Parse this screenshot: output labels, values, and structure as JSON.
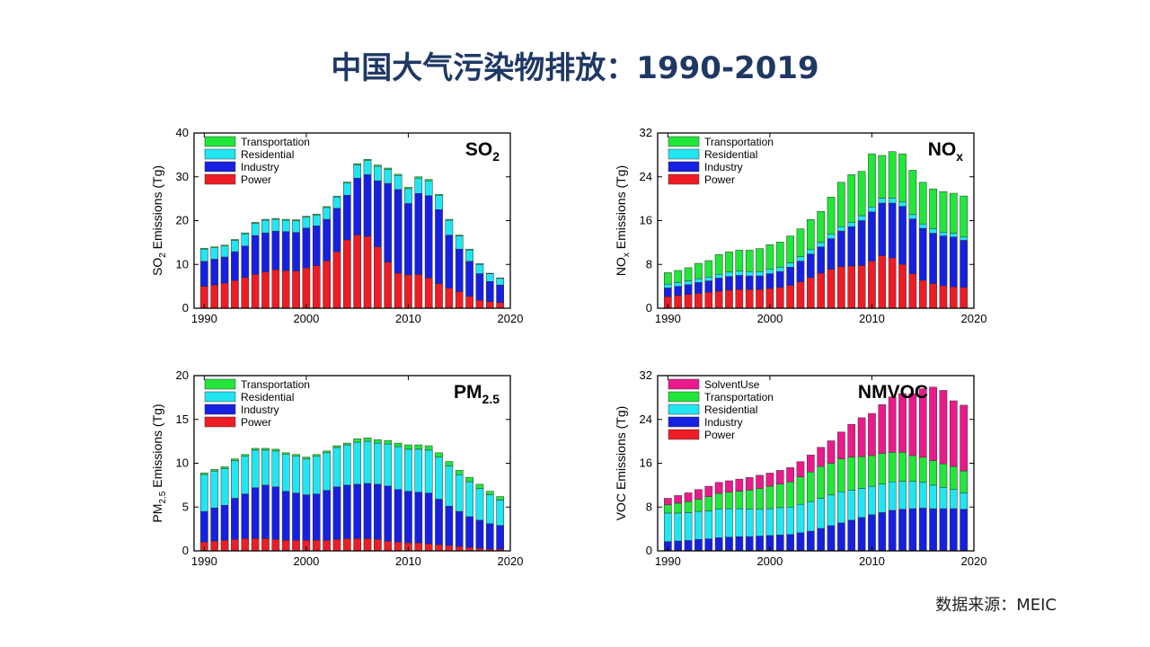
{
  "page": {
    "title": "中国大气污染物排放：1990-2019",
    "source": "数据来源：MEIC"
  },
  "chart_data": [
    {
      "type": "bar",
      "stacked": true,
      "title": "SO",
      "title_sub": "2",
      "ylabel": "SO",
      "ylabel_sub": "2",
      "ylabel_suffix": " Emissions (Tg)",
      "xlim": [
        1989,
        2020
      ],
      "ylim": [
        0,
        40
      ],
      "x_ticks": [
        1990,
        2000,
        2010,
        2020
      ],
      "y_ticks": [
        0,
        10,
        20,
        30,
        40
      ],
      "legend_position": "top-left",
      "x": [
        1990,
        1991,
        1992,
        1993,
        1994,
        1995,
        1996,
        1997,
        1998,
        1999,
        2000,
        2001,
        2002,
        2003,
        2004,
        2005,
        2006,
        2007,
        2008,
        2009,
        2010,
        2011,
        2012,
        2013,
        2014,
        2015,
        2016,
        2017,
        2018,
        2019
      ],
      "series": [
        {
          "name": "Power",
          "color": "#ee1c25",
          "values": [
            5,
            5.3,
            5.7,
            6.3,
            7,
            7.7,
            8.3,
            8.8,
            8.6,
            8.5,
            9.2,
            9.7,
            10.8,
            12.9,
            15.6,
            16.7,
            16.4,
            14,
            10.5,
            8,
            7.6,
            7.7,
            6.9,
            5.6,
            4.6,
            3.8,
            2.7,
            1.8,
            1.5,
            1.3
          ]
        },
        {
          "name": "Industry",
          "color": "#1620e0",
          "values": [
            5.7,
            5.9,
            6,
            6.6,
            7.2,
            8.9,
            8.9,
            8.8,
            8.9,
            8.8,
            9.1,
            9.1,
            9.5,
            9.9,
            10.2,
            13,
            14.1,
            15.1,
            18,
            19.1,
            16.3,
            18.5,
            18.8,
            16.9,
            12.1,
            9.7,
            8,
            6.1,
            4.6,
            4
          ]
        },
        {
          "name": "Residential",
          "color": "#22e5f2",
          "values": [
            2.8,
            2.6,
            2.5,
            2.6,
            2.8,
            2.8,
            2.9,
            2.7,
            2.6,
            2.7,
            2.5,
            2.5,
            2.7,
            2.6,
            2.8,
            3,
            3.2,
            3.3,
            3.2,
            3.2,
            3.4,
            3.5,
            3.4,
            3.3,
            3.4,
            3,
            2.6,
            2.1,
            1.8,
            1.5
          ]
        },
        {
          "name": "Transportation",
          "color": "#22e63a",
          "values": [
            0.2,
            0.2,
            0.2,
            0.2,
            0.2,
            0.2,
            0.2,
            0.2,
            0.2,
            0.2,
            0.2,
            0.2,
            0.2,
            0.2,
            0.2,
            0.3,
            0.3,
            0.3,
            0.3,
            0.3,
            0.3,
            0.3,
            0.3,
            0.2,
            0.2,
            0.2,
            0.2,
            0.2,
            0.1,
            0.1
          ]
        }
      ]
    },
    {
      "type": "bar",
      "stacked": true,
      "title": "NO",
      "title_sub": "x",
      "ylabel": "NO",
      "ylabel_sub": "x",
      "ylabel_suffix": " Emissions (Tg)",
      "xlim": [
        1989,
        2020
      ],
      "ylim": [
        0,
        32
      ],
      "x_ticks": [
        1990,
        2000,
        2010,
        2020
      ],
      "y_ticks": [
        0,
        8,
        16,
        24,
        32
      ],
      "legend_position": "top-left",
      "x": [
        1990,
        1991,
        1992,
        1993,
        1994,
        1995,
        1996,
        1997,
        1998,
        1999,
        2000,
        2001,
        2002,
        2003,
        2004,
        2005,
        2006,
        2007,
        2008,
        2009,
        2010,
        2011,
        2012,
        2013,
        2014,
        2015,
        2016,
        2017,
        2018,
        2019
      ],
      "series": [
        {
          "name": "Power",
          "color": "#ee1c25",
          "values": [
            2.1,
            2.3,
            2.5,
            2.7,
            2.9,
            3.1,
            3.3,
            3.4,
            3.4,
            3.4,
            3.6,
            3.8,
            4.2,
            4.8,
            5.6,
            6.4,
            7.1,
            7.6,
            7.7,
            7.8,
            8.6,
            9.6,
            9.2,
            8,
            6.3,
            5.1,
            4.5,
            4.1,
            3.9,
            3.8
          ]
        },
        {
          "name": "Industry",
          "color": "#1620e0",
          "values": [
            1.6,
            1.7,
            1.8,
            2,
            2.1,
            2.4,
            2.5,
            2.6,
            2.5,
            2.5,
            2.7,
            2.9,
            3.3,
            3.8,
            4.3,
            4.8,
            5.6,
            6.5,
            7.2,
            8.2,
            9,
            9.6,
            10,
            10.6,
            10,
            9.5,
            9.2,
            9.1,
            9.1,
            8.6
          ]
        },
        {
          "name": "Residential",
          "color": "#22e5f2",
          "values": [
            0.7,
            0.7,
            0.7,
            0.7,
            0.7,
            0.7,
            0.8,
            0.8,
            0.8,
            0.8,
            0.8,
            0.8,
            0.8,
            0.8,
            0.8,
            0.8,
            0.8,
            0.8,
            0.8,
            0.9,
            0.9,
            0.9,
            0.9,
            0.8,
            0.8,
            0.8,
            0.8,
            0.7,
            0.7,
            0.6
          ]
        },
        {
          "name": "Transportation",
          "color": "#22e63a",
          "values": [
            2.1,
            2.2,
            2.4,
            2.8,
            3,
            3.6,
            3.7,
            3.8,
            3.9,
            4.2,
            4.5,
            4.6,
            4.9,
            5.1,
            5.5,
            5.7,
            6.8,
            8.1,
            8.7,
            8.1,
            9.7,
            7.8,
            8.5,
            8.8,
            8.1,
            7.6,
            7.3,
            7.4,
            7.3,
            7.5
          ]
        }
      ]
    },
    {
      "type": "bar",
      "stacked": true,
      "title": "PM",
      "title_sub": "2.5",
      "ylabel": "PM",
      "ylabel_sub": "2.5",
      "ylabel_suffix": " Emissions (Tg)",
      "xlim": [
        1989,
        2020
      ],
      "ylim": [
        0,
        20
      ],
      "x_ticks": [
        1990,
        2000,
        2010,
        2020
      ],
      "y_ticks": [
        0,
        5,
        10,
        15,
        20
      ],
      "legend_position": "top-left",
      "x": [
        1990,
        1991,
        1992,
        1993,
        1994,
        1995,
        1996,
        1997,
        1998,
        1999,
        2000,
        2001,
        2002,
        2003,
        2004,
        2005,
        2006,
        2007,
        2008,
        2009,
        2010,
        2011,
        2012,
        2013,
        2014,
        2015,
        2016,
        2017,
        2018,
        2019
      ],
      "series": [
        {
          "name": "Power",
          "color": "#ee1c25",
          "values": [
            1,
            1.1,
            1.2,
            1.3,
            1.4,
            1.4,
            1.4,
            1.3,
            1.2,
            1.2,
            1.2,
            1.2,
            1.2,
            1.3,
            1.4,
            1.4,
            1.4,
            1.3,
            1.1,
            1,
            0.9,
            0.9,
            0.8,
            0.7,
            0.6,
            0.5,
            0.4,
            0.3,
            0.2,
            0.2
          ]
        },
        {
          "name": "Industry",
          "color": "#1620e0",
          "values": [
            3.5,
            3.8,
            4,
            4.7,
            5.1,
            5.8,
            6.1,
            6,
            5.6,
            5.4,
            5.2,
            5.3,
            5.7,
            6,
            6.1,
            6.2,
            6.3,
            6.3,
            6.3,
            6,
            5.9,
            5.8,
            5.8,
            5.2,
            4.5,
            4,
            3.5,
            3.2,
            2.9,
            2.7
          ]
        },
        {
          "name": "Residential",
          "color": "#22e5f2",
          "values": [
            4.2,
            4.2,
            4.2,
            4.3,
            4.3,
            4.3,
            4,
            4.1,
            4.2,
            4.2,
            4.1,
            4.3,
            4.3,
            4.5,
            4.6,
            4.8,
            4.8,
            4.7,
            4.8,
            4.9,
            4.8,
            4.9,
            4.9,
            4.8,
            4.6,
            4.2,
            4,
            3.6,
            3.3,
            2.9
          ]
        },
        {
          "name": "Transportation",
          "color": "#22e63a",
          "values": [
            0.2,
            0.2,
            0.2,
            0.2,
            0.2,
            0.2,
            0.2,
            0.2,
            0.2,
            0.2,
            0.2,
            0.2,
            0.2,
            0.2,
            0.2,
            0.4,
            0.4,
            0.4,
            0.4,
            0.4,
            0.5,
            0.5,
            0.5,
            0.5,
            0.5,
            0.5,
            0.5,
            0.5,
            0.4,
            0.4
          ]
        }
      ]
    },
    {
      "type": "bar",
      "stacked": true,
      "title": "NMVOC",
      "title_sub": "",
      "ylabel": "VOC",
      "ylabel_sub": "",
      "ylabel_suffix": " Emissions (Tg)",
      "xlim": [
        1989,
        2020
      ],
      "ylim": [
        0,
        32
      ],
      "x_ticks": [
        1990,
        2000,
        2010,
        2020
      ],
      "y_ticks": [
        0,
        8,
        16,
        24,
        32
      ],
      "legend_position": "top-left",
      "x": [
        1990,
        1991,
        1992,
        1993,
        1994,
        1995,
        1996,
        1997,
        1998,
        1999,
        2000,
        2001,
        2002,
        2003,
        2004,
        2005,
        2006,
        2007,
        2008,
        2009,
        2010,
        2011,
        2012,
        2013,
        2014,
        2015,
        2016,
        2017,
        2018,
        2019
      ],
      "series": [
        {
          "name": "Power",
          "color": "#ee1c25",
          "values": [
            0.1,
            0.1,
            0.1,
            0.1,
            0.1,
            0.1,
            0.1,
            0.1,
            0.1,
            0.1,
            0.1,
            0.1,
            0.1,
            0.1,
            0.1,
            0.1,
            0.1,
            0.1,
            0.1,
            0.1,
            0.1,
            0.1,
            0.1,
            0.1,
            0.1,
            0.1,
            0.1,
            0.1,
            0.1,
            0.1
          ]
        },
        {
          "name": "Industry",
          "color": "#1620e0",
          "values": [
            1.6,
            1.7,
            1.8,
            2,
            2.1,
            2.3,
            2.4,
            2.5,
            2.5,
            2.6,
            2.7,
            2.8,
            2.9,
            3.2,
            3.5,
            4,
            4.5,
            5,
            5.5,
            6,
            6.5,
            6.9,
            7.3,
            7.5,
            7.6,
            7.7,
            7.6,
            7.6,
            7.6,
            7.5
          ]
        },
        {
          "name": "Residential",
          "color": "#22e5f2",
          "values": [
            5.2,
            5.1,
            5.1,
            5.1,
            5.1,
            5.2,
            5.2,
            5.1,
            5,
            4.9,
            4.9,
            5,
            5,
            5.2,
            5.4,
            5.5,
            5.6,
            5.7,
            5.5,
            5.3,
            5.2,
            5.2,
            5.2,
            5.1,
            5,
            4.7,
            4.3,
            3.9,
            3.5,
            3
          ]
        },
        {
          "name": "Transportation",
          "color": "#22e63a",
          "values": [
            1.5,
            1.8,
            2,
            2.2,
            2.6,
            2.9,
            3,
            3.2,
            3.5,
            3.8,
            4.1,
            4.3,
            4.6,
            5,
            5.4,
            5.8,
            5.8,
            6,
            6,
            5.8,
            5.6,
            5.6,
            5.4,
            5.3,
            4.7,
            4.6,
            4.5,
            4.3,
            4.2,
            4
          ]
        },
        {
          "name": "SolventUse",
          "color": "#ea1a8c",
          "values": [
            1.2,
            1.4,
            1.6,
            1.8,
            1.9,
            2,
            2.1,
            2.2,
            2.3,
            2.4,
            2.4,
            2.5,
            2.6,
            2.8,
            3.1,
            3.5,
            4.1,
            4.9,
            6,
            7.1,
            7.7,
            8.9,
            10.1,
            10.7,
            11.3,
            12.5,
            13.4,
            13.4,
            12,
            12
          ]
        }
      ]
    }
  ]
}
